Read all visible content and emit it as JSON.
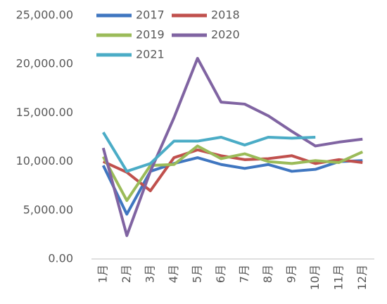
{
  "chart_data": {
    "type": "line",
    "categories": [
      "1月",
      "2月",
      "3月",
      "4月",
      "5月",
      "6月",
      "7月",
      "8月",
      "9月",
      "10月",
      "11月",
      "12月"
    ],
    "series": [
      {
        "name": "2017",
        "color": "#3f76c0",
        "values": [
          9600,
          4600,
          9000,
          9800,
          10400,
          9700,
          9300,
          9700,
          9000,
          9200,
          10000,
          10100
        ]
      },
      {
        "name": "2018",
        "color": "#c0504d",
        "values": [
          10000,
          8900,
          7000,
          10400,
          11200,
          10600,
          10200,
          10300,
          10600,
          9800,
          10200,
          9900
        ]
      },
      {
        "name": "2019",
        "color": "#9bbb59",
        "values": [
          10500,
          6000,
          9600,
          9700,
          11600,
          10300,
          10800,
          10000,
          9800,
          10100,
          9900,
          11000
        ]
      },
      {
        "name": "2020",
        "color": "#8064a2",
        "values": [
          11400,
          2400,
          9000,
          14500,
          20600,
          16100,
          15900,
          14700,
          13100,
          11600,
          12000,
          12300
        ]
      },
      {
        "name": "2021",
        "color": "#4bacc6",
        "values": [
          13000,
          9000,
          9800,
          12100,
          12100,
          12500,
          11700,
          12500,
          12400,
          12500,
          null,
          null
        ]
      }
    ],
    "ylim": [
      0,
      25000
    ],
    "yticks": [
      {
        "value": 0,
        "label": "0.00"
      },
      {
        "value": 5000,
        "label": "5,000.00"
      },
      {
        "value": 10000,
        "label": "10,000.00"
      },
      {
        "value": 15000,
        "label": "15,000.00"
      },
      {
        "value": 20000,
        "label": "20,000.00"
      },
      {
        "value": 25000,
        "label": "25,000.00"
      }
    ],
    "grid": false,
    "legend": "top-left"
  }
}
